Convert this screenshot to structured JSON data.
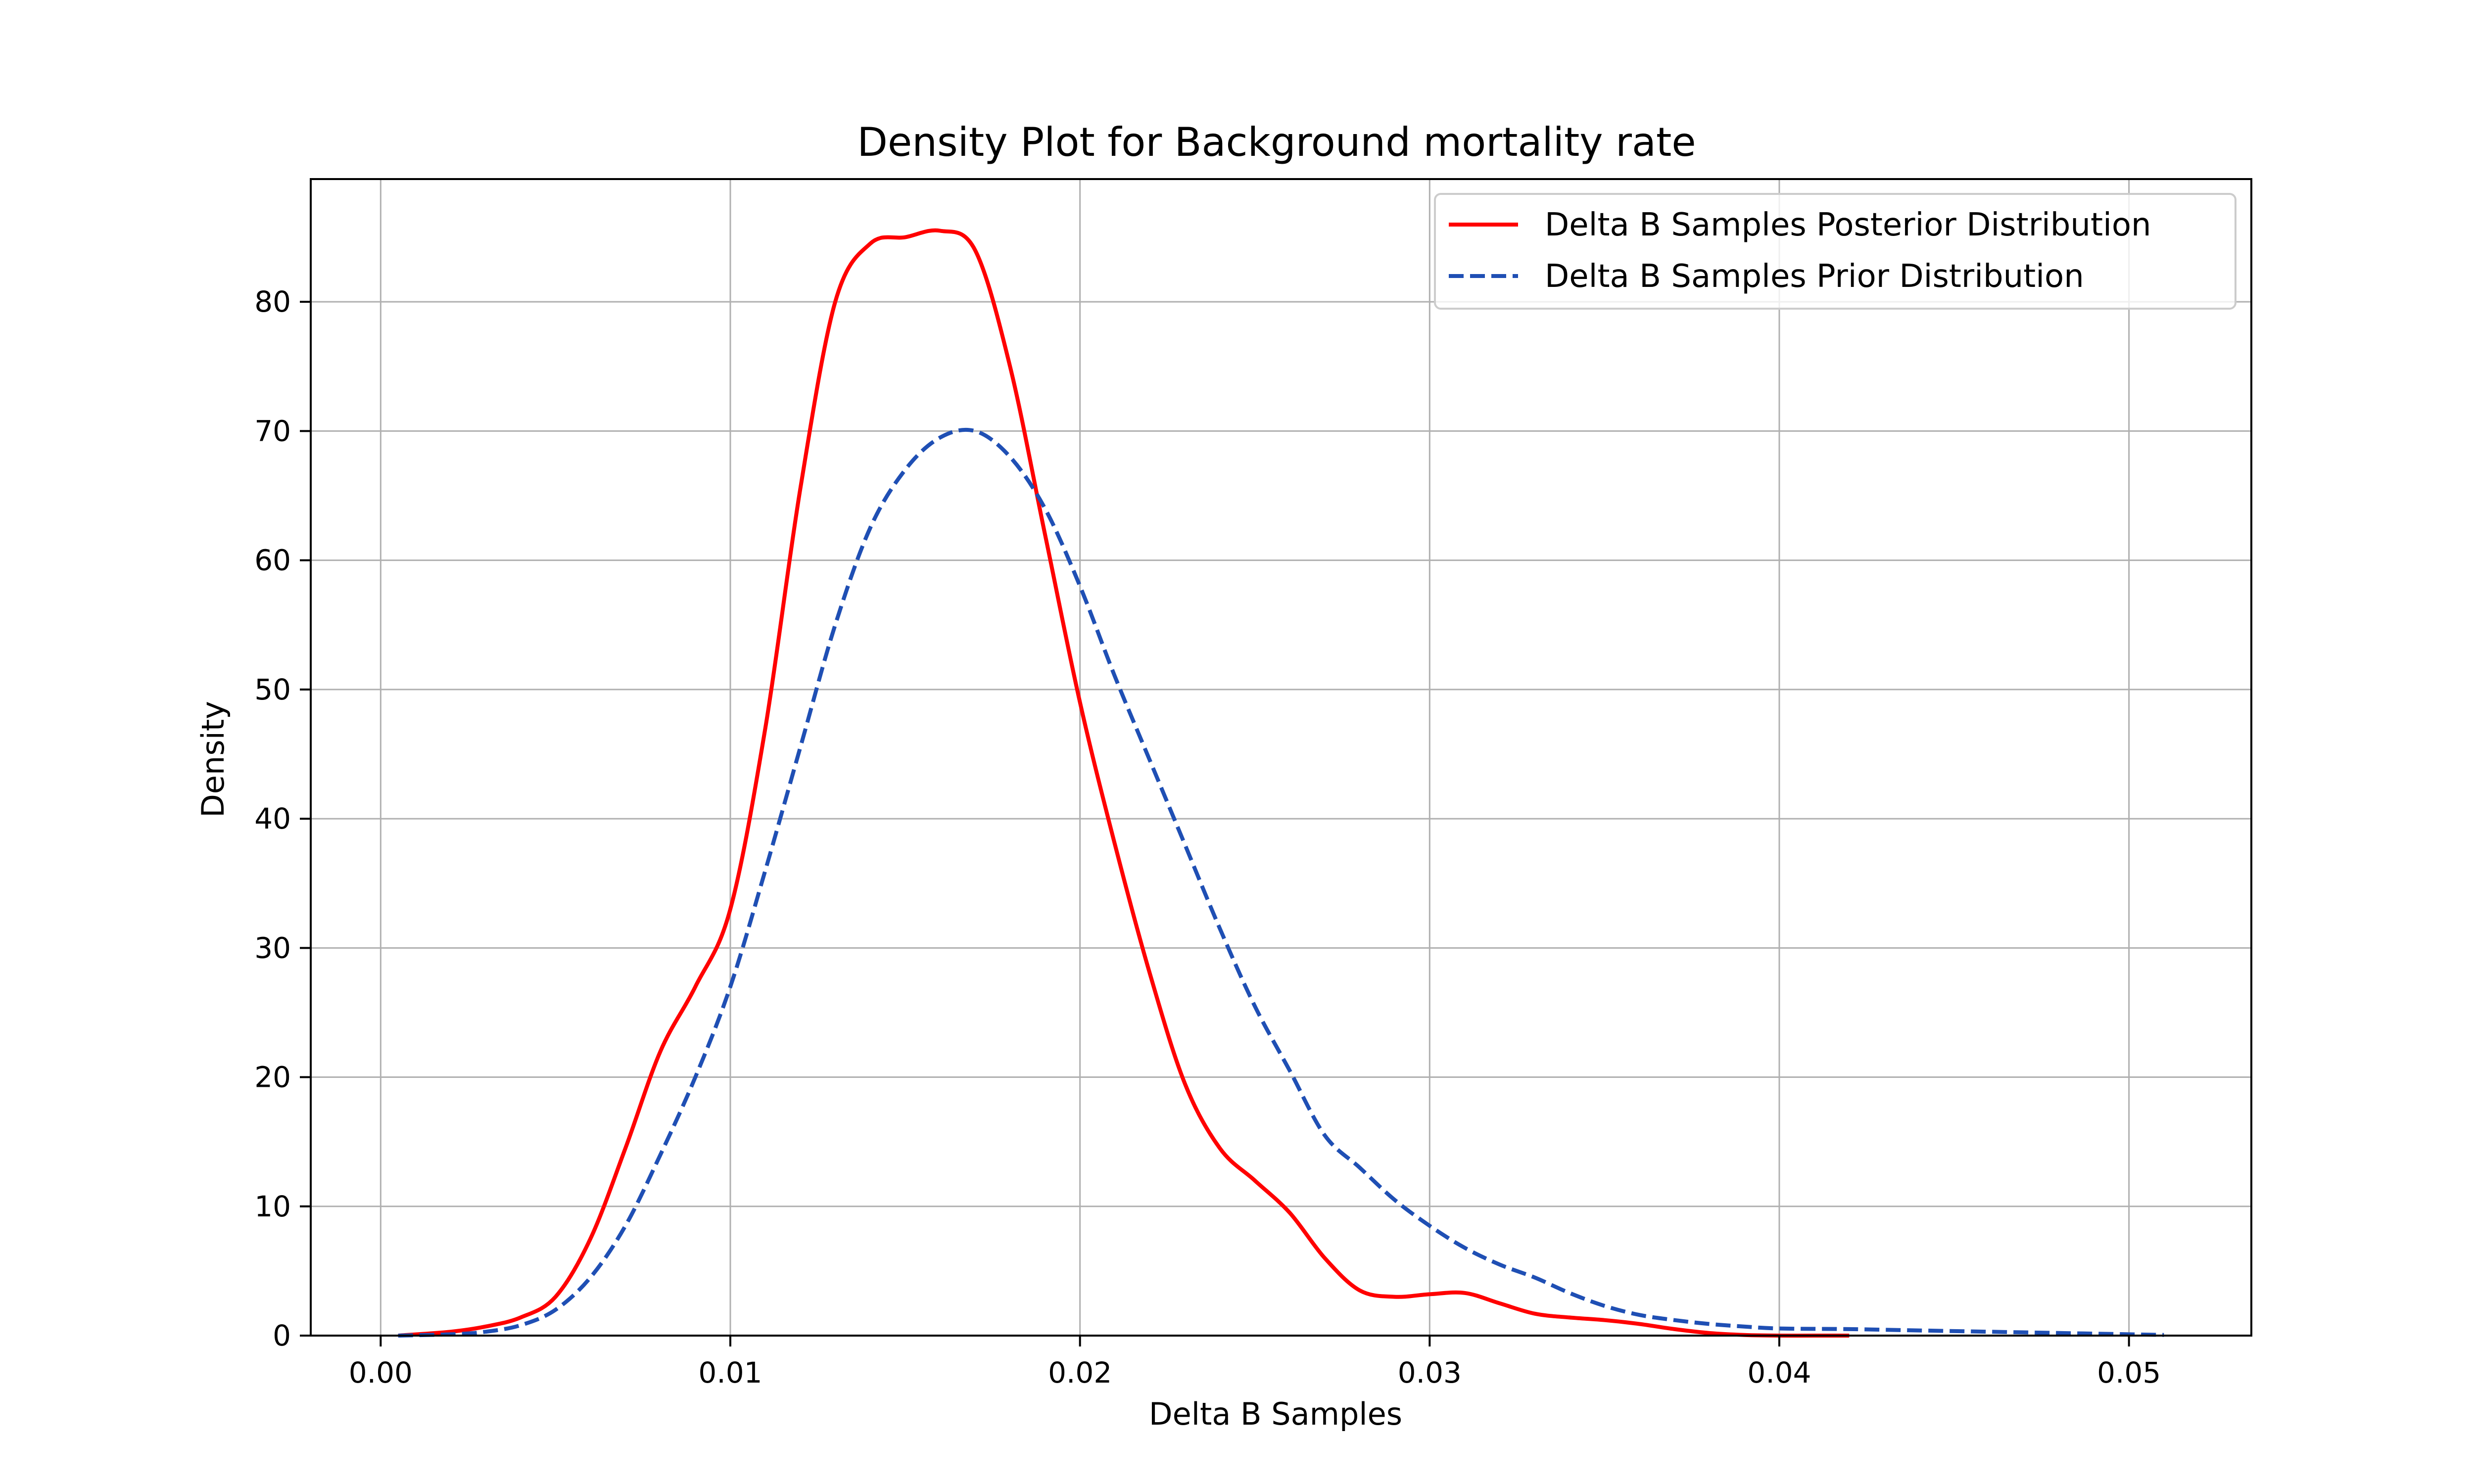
{
  "chart_data": {
    "type": "line",
    "title": "Density Plot for Background mortality rate",
    "xlabel": "Delta B Samples",
    "ylabel": "Density",
    "xlim": [
      -0.002,
      0.0535
    ],
    "ylim": [
      0,
      89.5
    ],
    "x_ticks": [
      0.0,
      0.01,
      0.02,
      0.03,
      0.04,
      0.05
    ],
    "x_tick_labels": [
      "0.00",
      "0.01",
      "0.02",
      "0.03",
      "0.04",
      "0.05"
    ],
    "y_ticks": [
      0,
      10,
      20,
      30,
      40,
      50,
      60,
      70,
      80
    ],
    "y_tick_labels": [
      "0",
      "10",
      "20",
      "30",
      "40",
      "50",
      "60",
      "70",
      "80"
    ],
    "grid": true,
    "legend_position": "top-right",
    "series": [
      {
        "name": "Delta B Samples Posterior Distribution",
        "color": "#ff0000",
        "style": "solid",
        "x": [
          0.0005,
          0.002,
          0.003,
          0.004,
          0.005,
          0.006,
          0.007,
          0.008,
          0.009,
          0.01,
          0.011,
          0.012,
          0.013,
          0.014,
          0.015,
          0.016,
          0.017,
          0.018,
          0.019,
          0.02,
          0.021,
          0.022,
          0.023,
          0.024,
          0.025,
          0.026,
          0.027,
          0.028,
          0.029,
          0.03,
          0.031,
          0.032,
          0.033,
          0.034,
          0.035,
          0.036,
          0.037,
          0.038,
          0.039,
          0.04,
          0.041,
          0.042
        ],
        "y": [
          0.0,
          0.3,
          0.7,
          1.4,
          3.0,
          7.5,
          14.5,
          22.0,
          27.0,
          33.0,
          47.0,
          65.5,
          80.0,
          84.5,
          85.0,
          85.5,
          84.0,
          75.0,
          62.0,
          49.0,
          38.0,
          28.0,
          19.5,
          14.5,
          12.0,
          9.5,
          6.0,
          3.5,
          3.0,
          3.2,
          3.3,
          2.5,
          1.7,
          1.4,
          1.2,
          0.9,
          0.5,
          0.2,
          0.05,
          0.0,
          0.0,
          0.0
        ]
      },
      {
        "name": "Delta B Samples Prior Distribution",
        "color": "#1f4fb4",
        "style": "dashed",
        "x": [
          0.0005,
          0.002,
          0.003,
          0.004,
          0.005,
          0.006,
          0.007,
          0.008,
          0.009,
          0.01,
          0.011,
          0.012,
          0.013,
          0.014,
          0.015,
          0.016,
          0.017,
          0.018,
          0.019,
          0.02,
          0.021,
          0.022,
          0.023,
          0.024,
          0.025,
          0.026,
          0.027,
          0.028,
          0.029,
          0.03,
          0.031,
          0.032,
          0.033,
          0.034,
          0.035,
          0.036,
          0.037,
          0.038,
          0.039,
          0.04,
          0.042,
          0.044,
          0.046,
          0.048,
          0.05,
          0.051
        ],
        "y": [
          0.0,
          0.1,
          0.3,
          0.8,
          2.0,
          4.5,
          8.5,
          14.0,
          20.0,
          27.0,
          36.0,
          45.5,
          55.0,
          62.5,
          67.0,
          69.5,
          70.0,
          68.0,
          64.0,
          58.0,
          51.0,
          44.5,
          38.0,
          31.5,
          25.5,
          20.5,
          15.5,
          13.0,
          10.5,
          8.5,
          6.8,
          5.5,
          4.5,
          3.3,
          2.3,
          1.6,
          1.2,
          0.9,
          0.7,
          0.55,
          0.5,
          0.4,
          0.3,
          0.2,
          0.1,
          0.05
        ]
      }
    ]
  }
}
